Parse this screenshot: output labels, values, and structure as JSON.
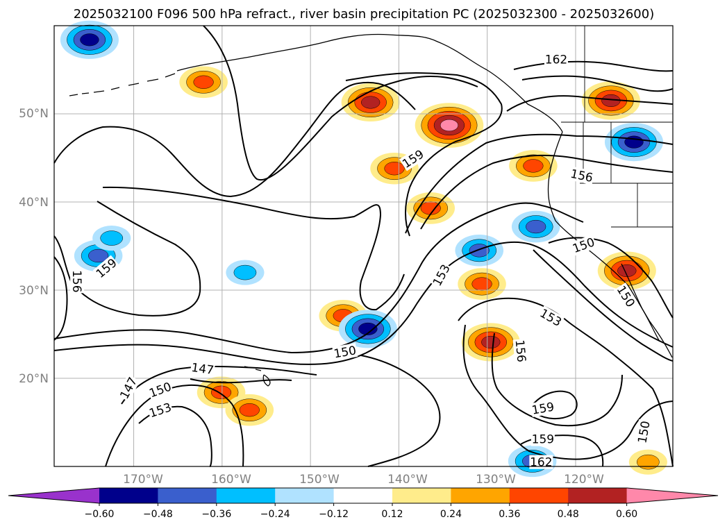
{
  "title": "2025032100 F096 500 hPa refract., river basin precipitation PC (2025032300 - 2025032600)",
  "lat_labels": [
    "50°N",
    "40°N",
    "30°N",
    "20°N"
  ],
  "lon_labels": [
    "170°W",
    "160°W",
    "150°W",
    "140°W",
    "130°W",
    "120°W"
  ],
  "map": {
    "projection": "PlateCarree",
    "lon_range": [
      -179,
      -109
    ],
    "lat_range": [
      10,
      60
    ],
    "gridline_lons": [
      -170,
      -160,
      -150,
      -140,
      -130,
      -120
    ],
    "gridline_lats": [
      50,
      40,
      30,
      20
    ],
    "contour_levels": [
      147,
      150,
      153,
      156,
      159,
      162
    ],
    "contour_labels": [
      {
        "text": "162",
        "lon": -122.2,
        "lat": 56.2,
        "angle": 0
      },
      {
        "text": "159",
        "lon": -138.4,
        "lat": 44.9,
        "angle": -33
      },
      {
        "text": "156",
        "lon": -119.3,
        "lat": 43.0,
        "angle": 12
      },
      {
        "text": "150",
        "lon": -119.1,
        "lat": 35.1,
        "angle": -20
      },
      {
        "text": "159",
        "lon": -173.1,
        "lat": 32.5,
        "angle": -40
      },
      {
        "text": "156",
        "lon": -176.4,
        "lat": 31.0,
        "angle": 90
      },
      {
        "text": "153",
        "lon": -135.2,
        "lat": 31.7,
        "angle": -62
      },
      {
        "text": "153",
        "lon": -122.8,
        "lat": 26.9,
        "angle": 30
      },
      {
        "text": "150",
        "lon": -114.3,
        "lat": 29.3,
        "angle": 58
      },
      {
        "text": "156",
        "lon": -126.2,
        "lat": 23.1,
        "angle": 85
      },
      {
        "text": "150",
        "lon": -146.1,
        "lat": 23.0,
        "angle": -10
      },
      {
        "text": "147",
        "lon": -162.2,
        "lat": 21.1,
        "angle": 8
      },
      {
        "text": "147",
        "lon": -170.6,
        "lat": 18.9,
        "angle": -62
      },
      {
        "text": "150",
        "lon": -167.0,
        "lat": 18.7,
        "angle": -20
      },
      {
        "text": "153",
        "lon": -167.0,
        "lat": 16.4,
        "angle": -18
      },
      {
        "text": "159",
        "lon": -123.7,
        "lat": 16.6,
        "angle": -10
      },
      {
        "text": "159",
        "lon": -123.7,
        "lat": 13.1,
        "angle": 0
      },
      {
        "text": "162",
        "lon": -123.9,
        "lat": 10.5,
        "angle": 0
      },
      {
        "text": "150",
        "lon": -112.3,
        "lat": 13.9,
        "angle": -80
      }
    ],
    "precip_blobs": [
      {
        "lon": -134.3,
        "lat": 48.7,
        "level": 0.6
      },
      {
        "lon": -143.2,
        "lat": 51.3,
        "level": 0.48
      },
      {
        "lon": -116.0,
        "lat": 51.5,
        "level": 0.48
      },
      {
        "lon": -124.8,
        "lat": 44.1,
        "level": 0.36
      },
      {
        "lon": -114.2,
        "lat": 32.2,
        "level": 0.48
      },
      {
        "lon": -129.6,
        "lat": 24.1,
        "level": 0.48
      },
      {
        "lon": -162.1,
        "lat": 53.6,
        "level": 0.36
      },
      {
        "lon": -140.5,
        "lat": 43.8,
        "level": 0.36
      },
      {
        "lon": -136.4,
        "lat": 39.3,
        "level": 0.36
      },
      {
        "lon": -146.3,
        "lat": 27.1,
        "level": 0.36
      },
      {
        "lon": -160.1,
        "lat": 18.4,
        "level": 0.36
      },
      {
        "lon": -156.9,
        "lat": 16.4,
        "level": 0.36
      },
      {
        "lon": -130.6,
        "lat": 30.7,
        "level": 0.36
      },
      {
        "lon": -111.8,
        "lat": 10.5,
        "level": 0.24
      },
      {
        "lon": -175.0,
        "lat": 58.4,
        "level": -0.48
      },
      {
        "lon": -113.4,
        "lat": 46.8,
        "level": -0.48
      },
      {
        "lon": -124.5,
        "lat": 37.2,
        "level": -0.36
      },
      {
        "lon": -143.5,
        "lat": 25.6,
        "level": -0.48
      },
      {
        "lon": -174.0,
        "lat": 33.9,
        "level": -0.36
      },
      {
        "lon": -130.9,
        "lat": 34.5,
        "level": -0.36
      },
      {
        "lon": -124.9,
        "lat": 10.6,
        "level": -0.36
      },
      {
        "lon": -157.4,
        "lat": 32.0,
        "level": -0.24
      },
      {
        "lon": -172.5,
        "lat": 35.9,
        "level": -0.24
      }
    ]
  },
  "colorbar": {
    "tick_labels": [
      "−0.60",
      "−0.48",
      "−0.36",
      "−0.24",
      "−0.12",
      "0.12",
      "0.24",
      "0.36",
      "0.48",
      "0.60"
    ],
    "colors": [
      "#9932cc",
      "#00008b",
      "#3a5fcd",
      "#00bfff",
      "#b0e2ff",
      "#ffffff",
      "#ffec8b",
      "#ffa500",
      "#ff4500",
      "#b22222",
      "#ff88aa"
    ]
  }
}
